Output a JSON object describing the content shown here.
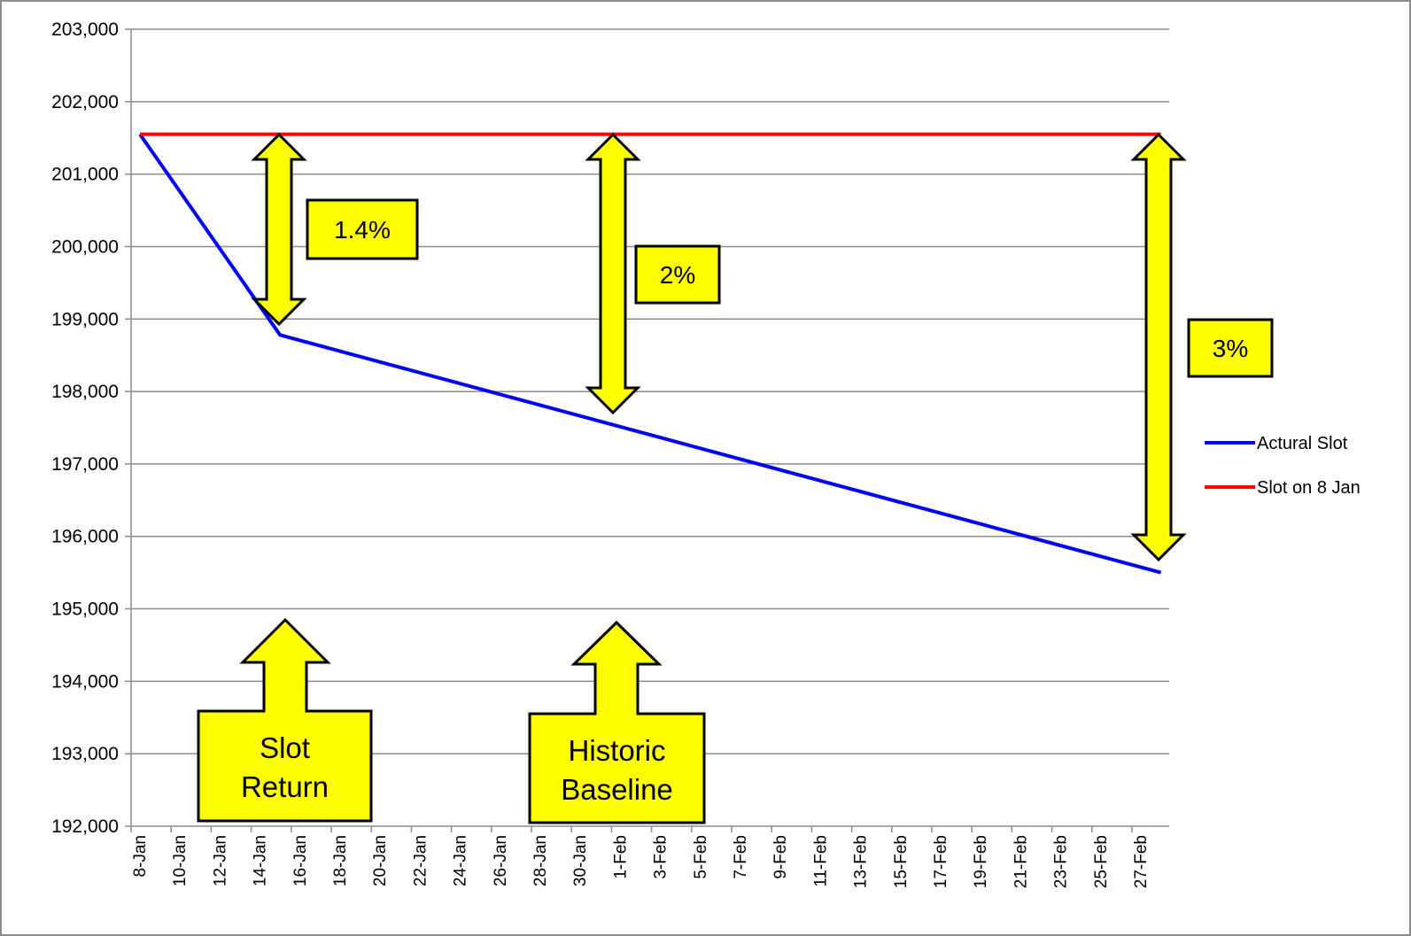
{
  "chart_data": {
    "type": "line",
    "title": "",
    "xlabel": "",
    "ylabel": "",
    "ylim": [
      192000,
      203000
    ],
    "yticks": [
      192000,
      193000,
      194000,
      195000,
      196000,
      197000,
      198000,
      199000,
      200000,
      201000,
      202000,
      203000
    ],
    "ytick_labels": [
      "192,000",
      "193,000",
      "194,000",
      "195,000",
      "196,000",
      "197,000",
      "198,000",
      "199,000",
      "200,000",
      "201,000",
      "202,000",
      "203,000"
    ],
    "x_start": "8-Jan",
    "xticks": [
      "8-Jan",
      "10-Jan",
      "12-Jan",
      "14-Jan",
      "16-Jan",
      "18-Jan",
      "20-Jan",
      "22-Jan",
      "24-Jan",
      "26-Jan",
      "28-Jan",
      "30-Jan",
      "1-Feb",
      "3-Feb",
      "5-Feb",
      "7-Feb",
      "9-Feb",
      "11-Feb",
      "13-Feb",
      "15-Feb",
      "17-Feb",
      "19-Feb",
      "21-Feb",
      "23-Feb",
      "25-Feb",
      "27-Feb"
    ],
    "grid": true,
    "legend_position": "right",
    "series": [
      {
        "name": "Actural Slot",
        "color": "#0000ff",
        "points": [
          {
            "x": "8-Jan",
            "y": 201550
          },
          {
            "x": "15-Jan",
            "y": 198780
          },
          {
            "x": "28-Feb",
            "y": 195500
          }
        ]
      },
      {
        "name": "Slot on 8 Jan",
        "color": "#ff0000",
        "points": [
          {
            "x": "8-Jan",
            "y": 201550
          },
          {
            "x": "28-Feb",
            "y": 201550
          }
        ]
      }
    ],
    "annotations": [
      {
        "kind": "percent-box",
        "text": "1.4%"
      },
      {
        "kind": "percent-box",
        "text": "2%"
      },
      {
        "kind": "percent-box",
        "text": "3%"
      },
      {
        "kind": "callout",
        "lines": [
          "Slot",
          "Return"
        ]
      },
      {
        "kind": "callout",
        "lines": [
          "Historic",
          "Baseline"
        ]
      }
    ]
  },
  "colors": {
    "callout_fill": "#ffff00",
    "callout_stroke": "#000000",
    "grid": "#8c8c8c"
  }
}
